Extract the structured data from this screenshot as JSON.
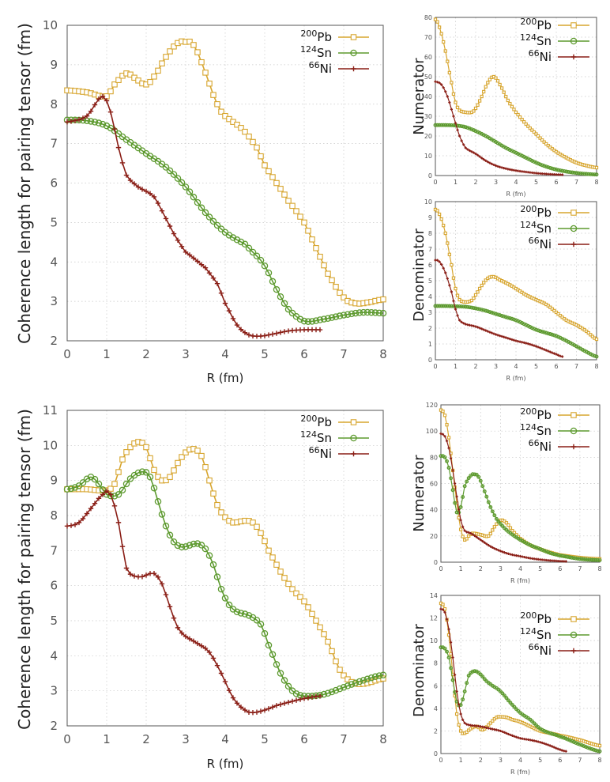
{
  "legend_names": [
    "Pb",
    "Sn",
    "Ni"
  ],
  "legend_masses": [
    "200",
    "124",
    "66"
  ],
  "series_colors": [
    "#d7a52e",
    "#5d9a2f",
    "#8a1e16"
  ],
  "chart_data": [
    {
      "id": "top-coherence",
      "type": "line",
      "ylabel": "Coherence length for pairing tensor (fm)",
      "xlabel": "R (fm)",
      "xlim": [
        0,
        8
      ],
      "ylim": [
        2,
        10
      ],
      "xticks": [
        "0",
        "1",
        "2",
        "3",
        "4",
        "5",
        "6",
        "7",
        "8"
      ],
      "yticks": [
        "2",
        "3",
        "4",
        "5",
        "6",
        "7",
        "8",
        "9",
        "10"
      ],
      "series": [
        {
          "name": "200Pb",
          "marker": "square",
          "end": 8,
          "x": [
            0,
            0.5,
            1.0,
            1.2,
            1.5,
            1.8,
            2.0,
            2.2,
            2.5,
            2.8,
            3.0,
            3.2,
            3.5,
            3.8,
            4.0,
            4.2,
            4.5,
            4.8,
            5.0,
            5.3,
            5.6,
            6.0,
            6.3,
            6.6,
            7.0,
            7.3,
            7.6,
            8.0
          ],
          "y": [
            8.35,
            8.3,
            8.2,
            8.5,
            8.78,
            8.6,
            8.5,
            8.7,
            9.2,
            9.55,
            9.58,
            9.5,
            8.8,
            8.0,
            7.7,
            7.55,
            7.3,
            6.9,
            6.45,
            6.0,
            5.55,
            5.0,
            4.35,
            3.7,
            3.1,
            2.95,
            2.97,
            3.05
          ]
        },
        {
          "name": "124Sn",
          "marker": "circle",
          "end": 8,
          "x": [
            0,
            0.5,
            1.0,
            1.5,
            2.0,
            2.5,
            3.0,
            3.5,
            4.0,
            4.5,
            4.8,
            5.0,
            5.3,
            5.6,
            6.0,
            6.5,
            7.0,
            7.5,
            8.0
          ],
          "y": [
            7.6,
            7.58,
            7.45,
            7.1,
            6.75,
            6.4,
            5.9,
            5.25,
            4.75,
            4.45,
            4.15,
            3.9,
            3.3,
            2.8,
            2.5,
            2.55,
            2.65,
            2.72,
            2.7
          ]
        },
        {
          "name": "66Ni",
          "marker": "plus",
          "end": 6.4,
          "x": [
            0,
            0.5,
            0.9,
            1.1,
            1.3,
            1.5,
            1.8,
            2.2,
            2.5,
            2.8,
            3.0,
            3.5,
            3.8,
            4.0,
            4.3,
            4.6,
            4.9,
            5.2,
            5.6,
            6.0,
            6.4
          ],
          "y": [
            7.55,
            7.7,
            8.2,
            7.8,
            6.9,
            6.2,
            5.9,
            5.65,
            5.1,
            4.55,
            4.25,
            3.85,
            3.45,
            2.95,
            2.4,
            2.15,
            2.12,
            2.17,
            2.25,
            2.28,
            2.28
          ]
        }
      ]
    },
    {
      "id": "top-numerator",
      "type": "line",
      "ylabel": "Numerator",
      "xlabel": "R (fm)",
      "xlim": [
        0,
        8
      ],
      "ylim": [
        0,
        80
      ],
      "xticks": [
        "0",
        "1",
        "2",
        "3",
        "4",
        "5",
        "6",
        "7",
        "8"
      ],
      "yticks": [
        "0",
        "10",
        "20",
        "30",
        "40",
        "50",
        "60",
        "70",
        "80"
      ],
      "series": [
        {
          "name": "200Pb",
          "marker": "square",
          "end": 8,
          "x": [
            0,
            0.2,
            0.5,
            0.8,
            1.0,
            1.2,
            1.5,
            1.8,
            2.0,
            2.3,
            2.6,
            2.9,
            3.2,
            3.6,
            4.0,
            4.5,
            5.0,
            5.5,
            6.0,
            6.5,
            7.0,
            7.5,
            8.0
          ],
          "y": [
            79,
            75,
            63,
            47,
            37,
            33,
            32,
            32,
            34,
            40,
            47,
            50,
            46,
            38,
            32,
            26,
            21,
            16,
            12,
            9,
            6.5,
            5,
            4
          ]
        },
        {
          "name": "124Sn",
          "marker": "circle",
          "end": 8,
          "x": [
            0,
            0.5,
            1.0,
            1.5,
            2.0,
            2.5,
            3.0,
            3.5,
            4.0,
            4.5,
            5.0,
            5.5,
            6.0,
            6.5,
            7.0,
            7.5,
            8.0
          ],
          "y": [
            25.5,
            25.5,
            25.3,
            24.5,
            22.5,
            20,
            17,
            14,
            11.5,
            9,
            6.5,
            4.5,
            3,
            2,
            1.3,
            0.8,
            0.5
          ]
        },
        {
          "name": "66Ni",
          "marker": "plus",
          "end": 6.3,
          "x": [
            0,
            0.3,
            0.6,
            0.9,
            1.2,
            1.5,
            2.0,
            2.5,
            3.0,
            3.5,
            4.0,
            4.5,
            5.0,
            5.5,
            6.0,
            6.3
          ],
          "y": [
            47.5,
            46,
            40,
            30,
            20,
            14,
            11,
            7.5,
            5,
            3.5,
            2.5,
            1.8,
            1.2,
            0.8,
            0.5,
            0.4
          ]
        }
      ]
    },
    {
      "id": "top-denominator",
      "type": "line",
      "ylabel": "Denominator",
      "xlabel": "R (fm)",
      "xlim": [
        0,
        8
      ],
      "ylim": [
        0,
        10
      ],
      "xticks": [
        "0",
        "1",
        "2",
        "3",
        "4",
        "5",
        "6",
        "7",
        "8"
      ],
      "yticks": [
        "0",
        "1",
        "2",
        "3",
        "4",
        "5",
        "6",
        "7",
        "8",
        "9",
        "10"
      ],
      "series": [
        {
          "name": "200Pb",
          "marker": "square",
          "end": 8,
          "x": [
            0,
            0.2,
            0.5,
            0.8,
            1.0,
            1.2,
            1.5,
            1.8,
            2.0,
            2.3,
            2.6,
            2.9,
            3.2,
            3.6,
            4.0,
            4.5,
            5.0,
            5.5,
            6.0,
            6.5,
            7.0,
            7.5,
            8.0
          ],
          "y": [
            9.5,
            9.2,
            8,
            6,
            4.5,
            3.8,
            3.65,
            3.75,
            4.1,
            4.7,
            5.15,
            5.25,
            5.05,
            4.8,
            4.5,
            4.1,
            3.8,
            3.5,
            3.0,
            2.5,
            2.2,
            1.8,
            1.3
          ]
        },
        {
          "name": "124Sn",
          "marker": "circle",
          "end": 8,
          "x": [
            0,
            0.5,
            1.0,
            1.5,
            2.0,
            2.5,
            3.0,
            3.5,
            4.0,
            4.5,
            5.0,
            5.5,
            6.0,
            6.5,
            7.0,
            7.5,
            8.0
          ],
          "y": [
            3.4,
            3.4,
            3.38,
            3.35,
            3.25,
            3.1,
            2.9,
            2.7,
            2.5,
            2.2,
            1.9,
            1.7,
            1.5,
            1.2,
            0.85,
            0.5,
            0.2
          ]
        },
        {
          "name": "66Ni",
          "marker": "plus",
          "end": 6.3,
          "x": [
            0,
            0.2,
            0.5,
            0.8,
            1.0,
            1.2,
            1.5,
            2.0,
            2.5,
            3.0,
            3.5,
            4.0,
            4.5,
            5.0,
            5.5,
            6.0,
            6.3
          ],
          "y": [
            6.3,
            6.2,
            5.5,
            4.3,
            3.2,
            2.5,
            2.25,
            2.1,
            1.85,
            1.6,
            1.4,
            1.2,
            1.05,
            0.85,
            0.6,
            0.35,
            0.2
          ]
        }
      ]
    },
    {
      "id": "bottom-coherence",
      "type": "line",
      "ylabel": "Coherence length for pairing tensor (fm)",
      "xlabel": "R (fm)",
      "xlim": [
        0,
        8
      ],
      "ylim": [
        2,
        11
      ],
      "xticks": [
        "0",
        "1",
        "2",
        "3",
        "4",
        "5",
        "6",
        "7",
        "8"
      ],
      "yticks": [
        "2",
        "3",
        "4",
        "5",
        "6",
        "7",
        "8",
        "9",
        "10",
        "11"
      ],
      "series": [
        {
          "name": "200Pb",
          "marker": "square",
          "end": 8,
          "x": [
            0,
            0.5,
            1.0,
            1.2,
            1.4,
            1.6,
            1.8,
            2.0,
            2.2,
            2.4,
            2.6,
            2.8,
            3.0,
            3.2,
            3.4,
            3.6,
            3.8,
            4.0,
            4.2,
            4.5,
            4.7,
            4.9,
            5.1,
            5.4,
            5.7,
            6.0,
            6.3,
            6.6,
            6.9,
            7.2,
            7.5,
            8.0
          ],
          "y": [
            8.75,
            8.75,
            8.72,
            8.9,
            9.6,
            9.95,
            10.1,
            9.95,
            9.3,
            9.0,
            9.1,
            9.5,
            9.8,
            9.9,
            9.7,
            9.0,
            8.3,
            7.95,
            7.8,
            7.85,
            7.8,
            7.5,
            7.0,
            6.4,
            5.9,
            5.55,
            5.0,
            4.4,
            3.6,
            3.25,
            3.2,
            3.35
          ]
        },
        {
          "name": "124Sn",
          "marker": "circle",
          "end": 8,
          "x": [
            0,
            0.3,
            0.6,
            0.8,
            1.0,
            1.3,
            1.6,
            1.9,
            2.1,
            2.3,
            2.5,
            2.7,
            2.9,
            3.1,
            3.3,
            3.5,
            3.7,
            3.9,
            4.1,
            4.3,
            4.6,
            4.9,
            5.1,
            5.4,
            5.7,
            6.0,
            6.5,
            7.0,
            7.5,
            8.0
          ],
          "y": [
            8.75,
            8.85,
            9.1,
            8.9,
            8.6,
            8.6,
            9.05,
            9.25,
            9.1,
            8.4,
            7.7,
            7.25,
            7.1,
            7.15,
            7.2,
            7.05,
            6.6,
            5.9,
            5.45,
            5.25,
            5.15,
            4.9,
            4.3,
            3.5,
            3.0,
            2.85,
            2.9,
            3.1,
            3.3,
            3.45
          ]
        },
        {
          "name": "66Ni",
          "marker": "plus",
          "end": 6.4,
          "x": [
            0,
            0.3,
            0.6,
            0.9,
            1.0,
            1.1,
            1.3,
            1.5,
            1.8,
            2.0,
            2.2,
            2.4,
            2.6,
            2.8,
            3.0,
            3.3,
            3.6,
            3.9,
            4.2,
            4.5,
            4.7,
            5.0,
            5.3,
            5.7,
            6.0,
            6.4
          ],
          "y": [
            7.7,
            7.8,
            8.2,
            8.6,
            8.7,
            8.6,
            7.8,
            6.5,
            6.25,
            6.3,
            6.35,
            6.05,
            5.4,
            4.8,
            4.55,
            4.35,
            4.1,
            3.5,
            2.8,
            2.45,
            2.38,
            2.45,
            2.58,
            2.7,
            2.78,
            2.85
          ]
        }
      ]
    },
    {
      "id": "bottom-numerator",
      "type": "line",
      "ylabel": "Numerator",
      "xlabel": "R (fm)",
      "xlim": [
        0,
        8
      ],
      "ylim": [
        0,
        120
      ],
      "xticks": [
        "0",
        "1",
        "2",
        "3",
        "4",
        "5",
        "6",
        "7",
        "8"
      ],
      "yticks": [
        "0",
        "20",
        "40",
        "60",
        "80",
        "100",
        "120"
      ],
      "series": [
        {
          "name": "200Pb",
          "marker": "square",
          "end": 8,
          "x": [
            0,
            0.2,
            0.4,
            0.6,
            0.8,
            1.0,
            1.2,
            1.4,
            1.6,
            2.0,
            2.4,
            2.7,
            3.0,
            3.3,
            3.6,
            4.0,
            4.5,
            5.0,
            5.5,
            6.0,
            7.0,
            8.0
          ],
          "y": [
            116,
            112,
            95,
            70,
            45,
            25,
            17,
            20,
            22,
            21,
            20,
            27,
            32,
            30,
            24,
            18,
            13,
            10,
            7.5,
            5.5,
            3.5,
            2.5
          ]
        },
        {
          "name": "124Sn",
          "marker": "circle",
          "end": 8,
          "x": [
            0,
            0.2,
            0.4,
            0.6,
            0.8,
            1.0,
            1.2,
            1.5,
            1.7,
            1.9,
            2.2,
            2.5,
            2.8,
            3.2,
            3.6,
            4.0,
            4.5,
            5.0,
            5.5,
            6.0,
            7.0,
            8.0
          ],
          "y": [
            81,
            80,
            72,
            55,
            38,
            42,
            58,
            66,
            67,
            65,
            54,
            42,
            33,
            26,
            21,
            17,
            13,
            10,
            7,
            5,
            2.5,
            1.5
          ]
        },
        {
          "name": "66Ni",
          "marker": "plus",
          "end": 6.3,
          "x": [
            0,
            0.2,
            0.4,
            0.6,
            0.8,
            1.0,
            1.2,
            1.5,
            2.0,
            2.5,
            3.0,
            3.5,
            4.0,
            4.5,
            5.0,
            5.5,
            6.0,
            6.3
          ],
          "y": [
            98,
            96,
            87,
            70,
            50,
            32,
            24,
            22,
            17,
            12,
            8.5,
            6,
            4.5,
            3,
            2,
            1.3,
            0.8,
            0.6
          ]
        }
      ]
    },
    {
      "id": "bottom-denominator",
      "type": "line",
      "ylabel": "Denominator",
      "xlabel": "R (fm)",
      "xlim": [
        0,
        8
      ],
      "ylim": [
        0,
        14
      ],
      "xticks": [
        "0",
        "1",
        "2",
        "3",
        "4",
        "5",
        "6",
        "7",
        "8"
      ],
      "yticks": [
        "0",
        "2",
        "4",
        "6",
        "8",
        "10",
        "12",
        "14"
      ],
      "series": [
        {
          "name": "200Pb",
          "marker": "square",
          "end": 8,
          "x": [
            0,
            0.2,
            0.4,
            0.6,
            0.8,
            1.0,
            1.2,
            1.5,
            1.8,
            2.1,
            2.5,
            2.8,
            3.0,
            3.3,
            3.6,
            4.0,
            4.5,
            5.0,
            5.5,
            6.0,
            7.0,
            8.0
          ],
          "y": [
            13.3,
            12.8,
            10.5,
            7,
            3.5,
            2.0,
            1.8,
            2.2,
            2.4,
            2.1,
            2.7,
            3.2,
            3.25,
            3.2,
            3.0,
            2.8,
            2.4,
            2.0,
            1.8,
            1.6,
            1.2,
            0.7
          ]
        },
        {
          "name": "124Sn",
          "marker": "circle",
          "end": 8,
          "x": [
            0,
            0.2,
            0.4,
            0.6,
            0.8,
            1.0,
            1.2,
            1.4,
            1.7,
            2.0,
            2.3,
            2.6,
            3.0,
            3.5,
            4.0,
            4.5,
            5.0,
            5.5,
            6.0,
            7.0,
            8.0
          ],
          "y": [
            9.4,
            9.3,
            8.5,
            6.5,
            4.6,
            4.3,
            5.5,
            6.9,
            7.3,
            7.0,
            6.4,
            6.0,
            5.5,
            4.5,
            3.6,
            3.0,
            2.2,
            1.8,
            1.5,
            0.8,
            0.2
          ]
        },
        {
          "name": "66Ni",
          "marker": "plus",
          "end": 6.3,
          "x": [
            0,
            0.2,
            0.4,
            0.6,
            0.8,
            1.0,
            1.2,
            1.5,
            2.0,
            2.5,
            3.0,
            3.5,
            4.0,
            4.5,
            5.0,
            5.5,
            6.0,
            6.3
          ],
          "y": [
            12.8,
            12.5,
            11,
            8.5,
            5.5,
            3.5,
            2.7,
            2.5,
            2.4,
            2.2,
            2.0,
            1.65,
            1.35,
            1.2,
            1.0,
            0.7,
            0.35,
            0.2
          ]
        }
      ]
    }
  ]
}
